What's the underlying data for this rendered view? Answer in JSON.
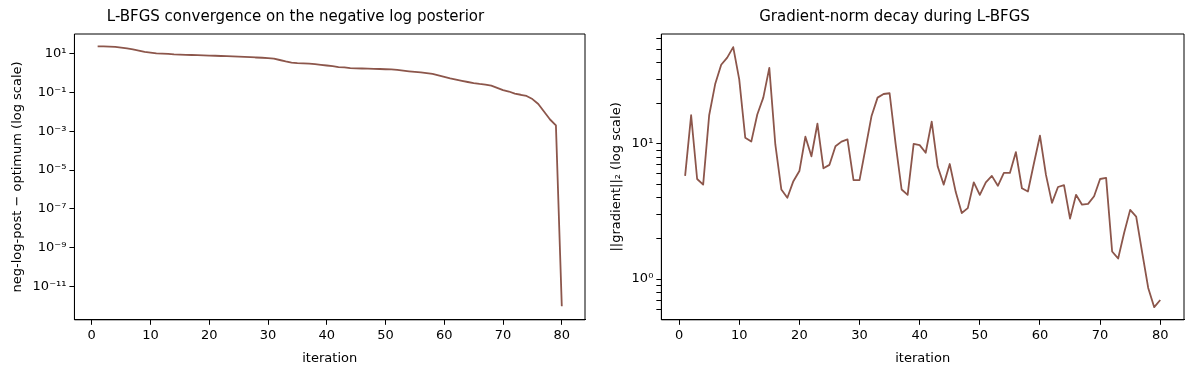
{
  "chart_data": [
    {
      "type": "line",
      "title": "L-BFGS convergence on the negative log posterior",
      "xlabel": "iteration",
      "ylabel": "neg-log-post − optimum (log scale)",
      "log": "y",
      "x": [
        1,
        2,
        3,
        4,
        5,
        6,
        7,
        8,
        9,
        10,
        11,
        12,
        13,
        14,
        15,
        16,
        17,
        18,
        19,
        20,
        21,
        22,
        23,
        24,
        25,
        26,
        27,
        28,
        29,
        30,
        31,
        32,
        33,
        34,
        35,
        36,
        37,
        38,
        39,
        40,
        41,
        42,
        43,
        44,
        45,
        46,
        47,
        48,
        49,
        50,
        51,
        52,
        53,
        54,
        55,
        56,
        57,
        58,
        59,
        60,
        61,
        62,
        63,
        64,
        65,
        66,
        67,
        68,
        69,
        70,
        71,
        72,
        73,
        74,
        75,
        76,
        77,
        78,
        79,
        80
      ],
      "series": [
        {
          "color": "#8c564b",
          "values": [
            23,
            23,
            22.5,
            22,
            20,
            18,
            16,
            14,
            12,
            11,
            10,
            9.8,
            9.5,
            9,
            8.7,
            8.5,
            8.3,
            8.2,
            8,
            7.8,
            7.6,
            7.4,
            7.2,
            7,
            6.8,
            6.6,
            6.4,
            6.2,
            6,
            5.8,
            5.4,
            4.6,
            3.9,
            3.4,
            3.2,
            3.1,
            3,
            2.8,
            2.6,
            2.4,
            2.2,
            2,
            1.9,
            1.75,
            1.7,
            1.68,
            1.66,
            1.62,
            1.58,
            1.54,
            1.5,
            1.42,
            1.3,
            1.2,
            1.12,
            1.05,
            0.98,
            0.88,
            0.75,
            0.62,
            0.52,
            0.45,
            0.39,
            0.34,
            0.3,
            0.27,
            0.25,
            0.22,
            0.17,
            0.13,
            0.11,
            0.085,
            0.075,
            0.065,
            0.045,
            0.025,
            0.01,
            0.004,
            0.002,
            1e-12
          ]
        }
      ],
      "xlim": [
        -2.95,
        83.95
      ],
      "xticks": [
        0,
        10,
        20,
        30,
        40,
        50,
        60,
        70,
        80
      ],
      "ylim": [
        2e-13,
        100
      ],
      "yticks": [
        {
          "value": 1e-11,
          "label": "10⁻¹¹"
        },
        {
          "value": 1e-09,
          "label": "10⁻⁹"
        },
        {
          "value": 1e-07,
          "label": "10⁻⁷"
        },
        {
          "value": 1e-05,
          "label": "10⁻⁵"
        },
        {
          "value": 0.001,
          "label": "10⁻³"
        },
        {
          "value": 0.1,
          "label": "10⁻¹"
        },
        {
          "value": 10,
          "label": "10¹"
        }
      ]
    },
    {
      "type": "line",
      "title": "Gradient-norm decay during L-BFGS",
      "xlabel": "iteration",
      "ylabel": "||gradient||₂ (log scale)",
      "log": "y",
      "x": [
        1,
        2,
        3,
        4,
        5,
        6,
        7,
        8,
        9,
        10,
        11,
        12,
        13,
        14,
        15,
        16,
        17,
        18,
        19,
        20,
        21,
        22,
        23,
        24,
        25,
        26,
        27,
        28,
        29,
        30,
        31,
        32,
        33,
        34,
        35,
        36,
        37,
        38,
        39,
        40,
        41,
        42,
        43,
        44,
        45,
        46,
        47,
        48,
        49,
        50,
        51,
        52,
        53,
        54,
        55,
        56,
        57,
        58,
        59,
        60,
        61,
        62,
        63,
        64,
        65,
        66,
        67,
        68,
        69,
        70,
        71,
        72,
        73,
        74,
        75,
        76,
        77,
        78,
        79,
        80
      ],
      "series": [
        {
          "color": "#8c564b",
          "values": [
            5.8,
            16.3,
            5.5,
            5,
            16.3,
            27.7,
            38.5,
            43.5,
            52,
            30,
            11.1,
            10.4,
            16.5,
            22,
            36.5,
            9.9,
            4.6,
            4,
            5.3,
            6.3,
            11.3,
            8.1,
            14.1,
            6.6,
            7,
            9.6,
            10.4,
            10.8,
            5.4,
            5.4,
            9.3,
            16.1,
            22,
            23.4,
            23.7,
            10,
            4.6,
            4.2,
            10,
            9.8,
            8.6,
            14.6,
            6.8,
            5,
            7.1,
            4.4,
            3.08,
            3.35,
            5.2,
            4.2,
            5.2,
            5.8,
            4.9,
            6.1,
            6.1,
            8.7,
            4.7,
            4.45,
            7.2,
            11.5,
            5.9,
            3.66,
            4.8,
            4.95,
            2.8,
            4.2,
            3.55,
            3.6,
            4.1,
            5.5,
            5.6,
            1.6,
            1.42,
            2.2,
            3.25,
            2.9,
            1.57,
            0.86,
            0.62,
            0.7
          ]
        }
      ],
      "xlim": [
        -2.95,
        83.95
      ],
      "xticks": [
        0,
        10,
        20,
        30,
        40,
        50,
        60,
        70,
        80
      ],
      "ylim": [
        0.5,
        65
      ],
      "yticks": [
        {
          "value": 0.6,
          "label": null
        },
        {
          "value": 0.7,
          "label": null
        },
        {
          "value": 0.8,
          "label": null
        },
        {
          "value": 0.9,
          "label": null
        },
        {
          "value": 1,
          "label": "10⁰"
        },
        {
          "value": 2,
          "label": null
        },
        {
          "value": 3,
          "label": null
        },
        {
          "value": 4,
          "label": null
        },
        {
          "value": 5,
          "label": null
        },
        {
          "value": 6,
          "label": null
        },
        {
          "value": 7,
          "label": null
        },
        {
          "value": 8,
          "label": null
        },
        {
          "value": 9,
          "label": null
        },
        {
          "value": 10,
          "label": "10¹"
        },
        {
          "value": 20,
          "label": null
        },
        {
          "value": 30,
          "label": null
        },
        {
          "value": 40,
          "label": null
        },
        {
          "value": 50,
          "label": null
        },
        {
          "value": 60,
          "label": null
        }
      ]
    }
  ]
}
